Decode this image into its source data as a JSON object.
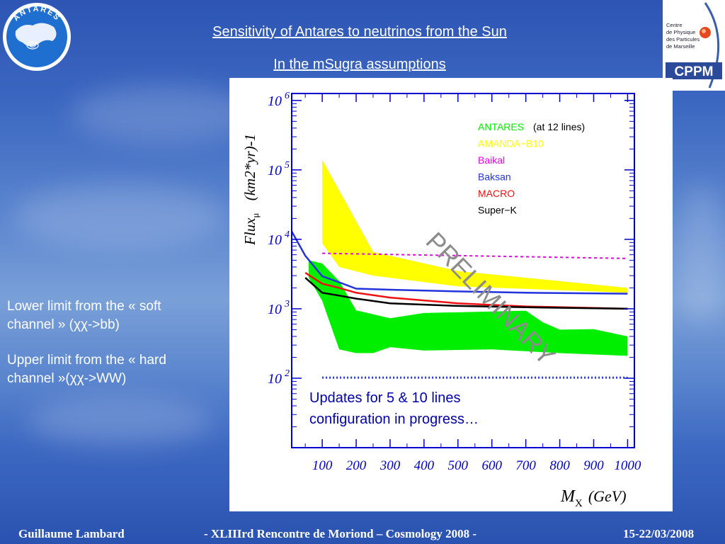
{
  "slide": {
    "title_line1": "Sensitivity of Antares to neutrinos from the Sun",
    "title_line2": "In the mSugra assumptions",
    "note1_line1": "Lower limit from the « soft",
    "note1_line2": "channel » (χχ->bb)",
    "note2_line1": "Upper limit from the « hard",
    "note2_line2": "channel »(χχ->WW)",
    "antares_logo_text": "ANTARES",
    "cppm_logo_lines": [
      "Centre",
      "de Physique",
      "des Particules",
      "de Marseille"
    ],
    "cppm_logo_word": "CPPM"
  },
  "footer": {
    "author": "Guillaume Lambard",
    "event": "-   XLIIIrd    Rencontre de Moriond – Cosmology 2008    -",
    "date": "15-22/03/2008"
  },
  "colors": {
    "antares": "#00ee00",
    "amanda": "#ffff00",
    "baikal": "#ee00ee",
    "baksan": "#2233dd",
    "macro": "#ee1111",
    "superk": "#000000",
    "axis": "#0000cc",
    "preliminary": "#8c8c8c",
    "updates_text": "#0000aa"
  },
  "chart_data": {
    "type": "line",
    "x_unit_label": "(GeV)",
    "y_ticks": [
      "10^2",
      "10^3",
      "10^4",
      "10^5",
      "10^6"
    ],
    "x_ticks": [
      100,
      200,
      300,
      400,
      500,
      600,
      700,
      800,
      900,
      1000
    ],
    "xlim": [
      10,
      1020
    ],
    "ylim_log10": [
      1,
      6.1
    ],
    "yscale": "log",
    "watermark": "PRELIMINARY",
    "note_line1": "Updates for 5 & 10 lines",
    "note_line2": "configuration in progress…",
    "legend": [
      {
        "key": "antares",
        "label": "ANTARES",
        "suffix": "(at 12 lines)"
      },
      {
        "key": "amanda",
        "label": "AMANDA−B10",
        "suffix": ""
      },
      {
        "key": "baikal",
        "label": "Baikal",
        "suffix": ""
      },
      {
        "key": "baksan",
        "label": "Baksan",
        "suffix": ""
      },
      {
        "key": "macro",
        "label": "MACRO",
        "suffix": ""
      },
      {
        "key": "superk",
        "label": "Super−K",
        "suffix": ""
      }
    ],
    "bands": [
      {
        "key": "amanda",
        "upper": [
          [
            100,
            140000
          ],
          [
            250,
            6600
          ],
          [
            500,
            3500
          ],
          [
            1000,
            2000
          ]
        ],
        "lower": [
          [
            100,
            8800
          ],
          [
            150,
            4000
          ],
          [
            250,
            3000
          ],
          [
            500,
            2100
          ],
          [
            1000,
            1700
          ]
        ]
      },
      {
        "key": "antares",
        "upper": [
          [
            60,
            5000
          ],
          [
            100,
            4500
          ],
          [
            150,
            2500
          ],
          [
            200,
            950
          ],
          [
            300,
            730
          ],
          [
            400,
            870
          ],
          [
            700,
            940
          ],
          [
            750,
            640
          ],
          [
            800,
            500
          ],
          [
            900,
            510
          ],
          [
            1000,
            400
          ]
        ],
        "lower": [
          [
            60,
            2800
          ],
          [
            100,
            1300
          ],
          [
            150,
            260
          ],
          [
            200,
            230
          ],
          [
            250,
            230
          ],
          [
            300,
            280
          ],
          [
            400,
            250
          ],
          [
            600,
            260
          ],
          [
            800,
            230
          ],
          [
            1000,
            210
          ]
        ]
      }
    ],
    "series": [
      {
        "key": "baikal",
        "style": "dotted",
        "x": [
          100,
          1000
        ],
        "y": [
          6300,
          5300
        ]
      },
      {
        "key": "baksan",
        "style": "solid",
        "x": [
          10,
          50,
          100,
          150,
          200,
          300,
          500,
          700,
          1000
        ],
        "y": [
          13000,
          5800,
          2950,
          2400,
          1950,
          1880,
          1780,
          1700,
          1650
        ]
      },
      {
        "key": "macro",
        "style": "solid",
        "x": [
          50,
          100,
          150,
          200,
          300,
          500,
          700,
          1000
        ],
        "y": [
          3300,
          2300,
          2000,
          1700,
          1450,
          1200,
          1080,
          1000
        ]
      },
      {
        "key": "superk",
        "style": "solid",
        "x": [
          50,
          100,
          150,
          200,
          300,
          500,
          700,
          1000
        ],
        "y": [
          2800,
          1700,
          1550,
          1400,
          1200,
          1100,
          1050,
          1000
        ]
      },
      {
        "key": "baksan",
        "style": "dotted",
        "x": [
          100,
          1000
        ],
        "y": [
          102,
          102
        ]
      }
    ]
  }
}
